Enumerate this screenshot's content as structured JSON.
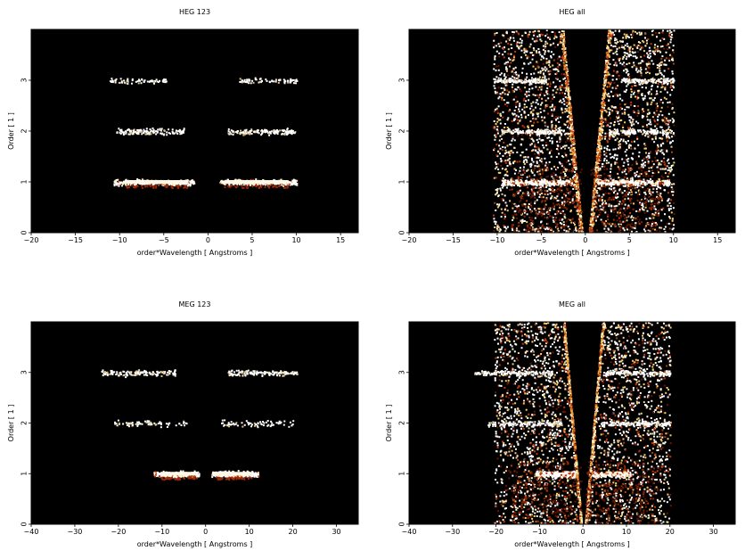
{
  "chart_data": [
    {
      "type": "heatmap",
      "title": "HEG 123",
      "xlabel": "order*Wavelength [ Angstroms ]",
      "ylabel": "Order [ 1 ]",
      "xlim": [
        -20,
        17
      ],
      "ylim": [
        0,
        4
      ],
      "xticks": [
        -20,
        -15,
        -10,
        -5,
        0,
        5,
        10,
        15
      ],
      "yticks": [
        0,
        1,
        2,
        3
      ],
      "background": "#000000",
      "bands": [
        {
          "order": 1,
          "x_range": [
            -10.7,
            -1.6
          ],
          "core": [
            -9.5,
            -2.2
          ],
          "intensity": "high"
        },
        {
          "order": 1,
          "x_range": [
            1.3,
            10.0
          ],
          "core": [
            1.8,
            9.2
          ],
          "intensity": "high"
        },
        {
          "order": 2,
          "x_range": [
            -10.4,
            -2.7
          ],
          "intensity": "medium"
        },
        {
          "order": 2,
          "x_range": [
            2.2,
            9.8
          ],
          "intensity": "medium"
        },
        {
          "order": 3,
          "x_range": [
            -11.2,
            -4.8
          ],
          "intensity": "low"
        },
        {
          "order": 3,
          "x_range": [
            3.5,
            10.2
          ],
          "intensity": "low"
        }
      ]
    },
    {
      "type": "heatmap",
      "title": "HEG all",
      "xlabel": "order*Wavelength [ Angstroms ]",
      "ylabel": "Order [ 1 ]",
      "xlim": [
        -20,
        17
      ],
      "ylim": [
        0,
        4
      ],
      "xticks": [
        -20,
        -15,
        -10,
        -5,
        0,
        5,
        10,
        15
      ],
      "yticks": [
        0,
        1,
        2,
        3
      ],
      "background": "#000000",
      "bands": [
        {
          "order": 1,
          "x_range": [
            -9.5,
            -1.6
          ],
          "intensity": "high"
        },
        {
          "order": 1,
          "x_range": [
            1.3,
            9.5
          ],
          "intensity": "high"
        },
        {
          "order": 2,
          "x_range": [
            -10.0,
            -2.5
          ],
          "intensity": "medium"
        },
        {
          "order": 2,
          "x_range": [
            2.5,
            10.0
          ],
          "intensity": "medium"
        },
        {
          "order": 3,
          "x_range": [
            -10.5,
            -4.5
          ],
          "intensity": "medium"
        },
        {
          "order": 3,
          "x_range": [
            4.0,
            10.0
          ],
          "intensity": "medium"
        }
      ]
    },
    {
      "type": "heatmap",
      "title": "MEG 123",
      "xlabel": "order*Wavelength [ Angstroms ]",
      "ylabel": "Order [ 1 ]",
      "xlim": [
        -40,
        35
      ],
      "ylim": [
        0,
        4
      ],
      "xticks": [
        -40,
        -30,
        -20,
        -10,
        0,
        10,
        20,
        30
      ],
      "yticks": [
        0,
        1,
        2,
        3
      ],
      "background": "#000000",
      "bands": [
        {
          "order": 1,
          "x_range": [
            -12.0,
            -1.6
          ],
          "core": [
            -10.5,
            -2.0
          ],
          "intensity": "high"
        },
        {
          "order": 1,
          "x_range": [
            1.3,
            12.0
          ],
          "core": [
            1.8,
            10.5
          ],
          "intensity": "high"
        },
        {
          "order": 2,
          "x_range": [
            -21.0,
            -4.5
          ],
          "intensity": "low"
        },
        {
          "order": 2,
          "x_range": [
            3.5,
            20.0
          ],
          "intensity": "low"
        },
        {
          "order": 3,
          "x_range": [
            -24.0,
            -7.0
          ],
          "intensity": "medium"
        },
        {
          "order": 3,
          "x_range": [
            5.0,
            21.0
          ],
          "intensity": "medium"
        }
      ]
    },
    {
      "type": "heatmap",
      "title": "MEG all",
      "xlabel": "order*Wavelength [ Angstroms ]",
      "ylabel": "Order [ 1 ]",
      "xlim": [
        -40,
        35
      ],
      "ylim": [
        0,
        4
      ],
      "xticks": [
        -40,
        -30,
        -20,
        -10,
        0,
        10,
        20,
        30
      ],
      "yticks": [
        0,
        1,
        2,
        3
      ],
      "background": "#000000",
      "bands": [
        {
          "order": 1,
          "x_range": [
            -11.0,
            -2.0
          ],
          "intensity": "high"
        },
        {
          "order": 1,
          "x_range": [
            2.0,
            11.0
          ],
          "intensity": "high"
        },
        {
          "order": 2,
          "x_range": [
            -22.0,
            -5.0
          ],
          "intensity": "medium"
        },
        {
          "order": 2,
          "x_range": [
            4.0,
            20.0
          ],
          "intensity": "medium"
        },
        {
          "order": 3,
          "x_range": [
            -25.0,
            -7.0
          ],
          "intensity": "medium"
        },
        {
          "order": 3,
          "x_range": [
            5.0,
            20.0
          ],
          "intensity": "medium"
        }
      ]
    }
  ]
}
